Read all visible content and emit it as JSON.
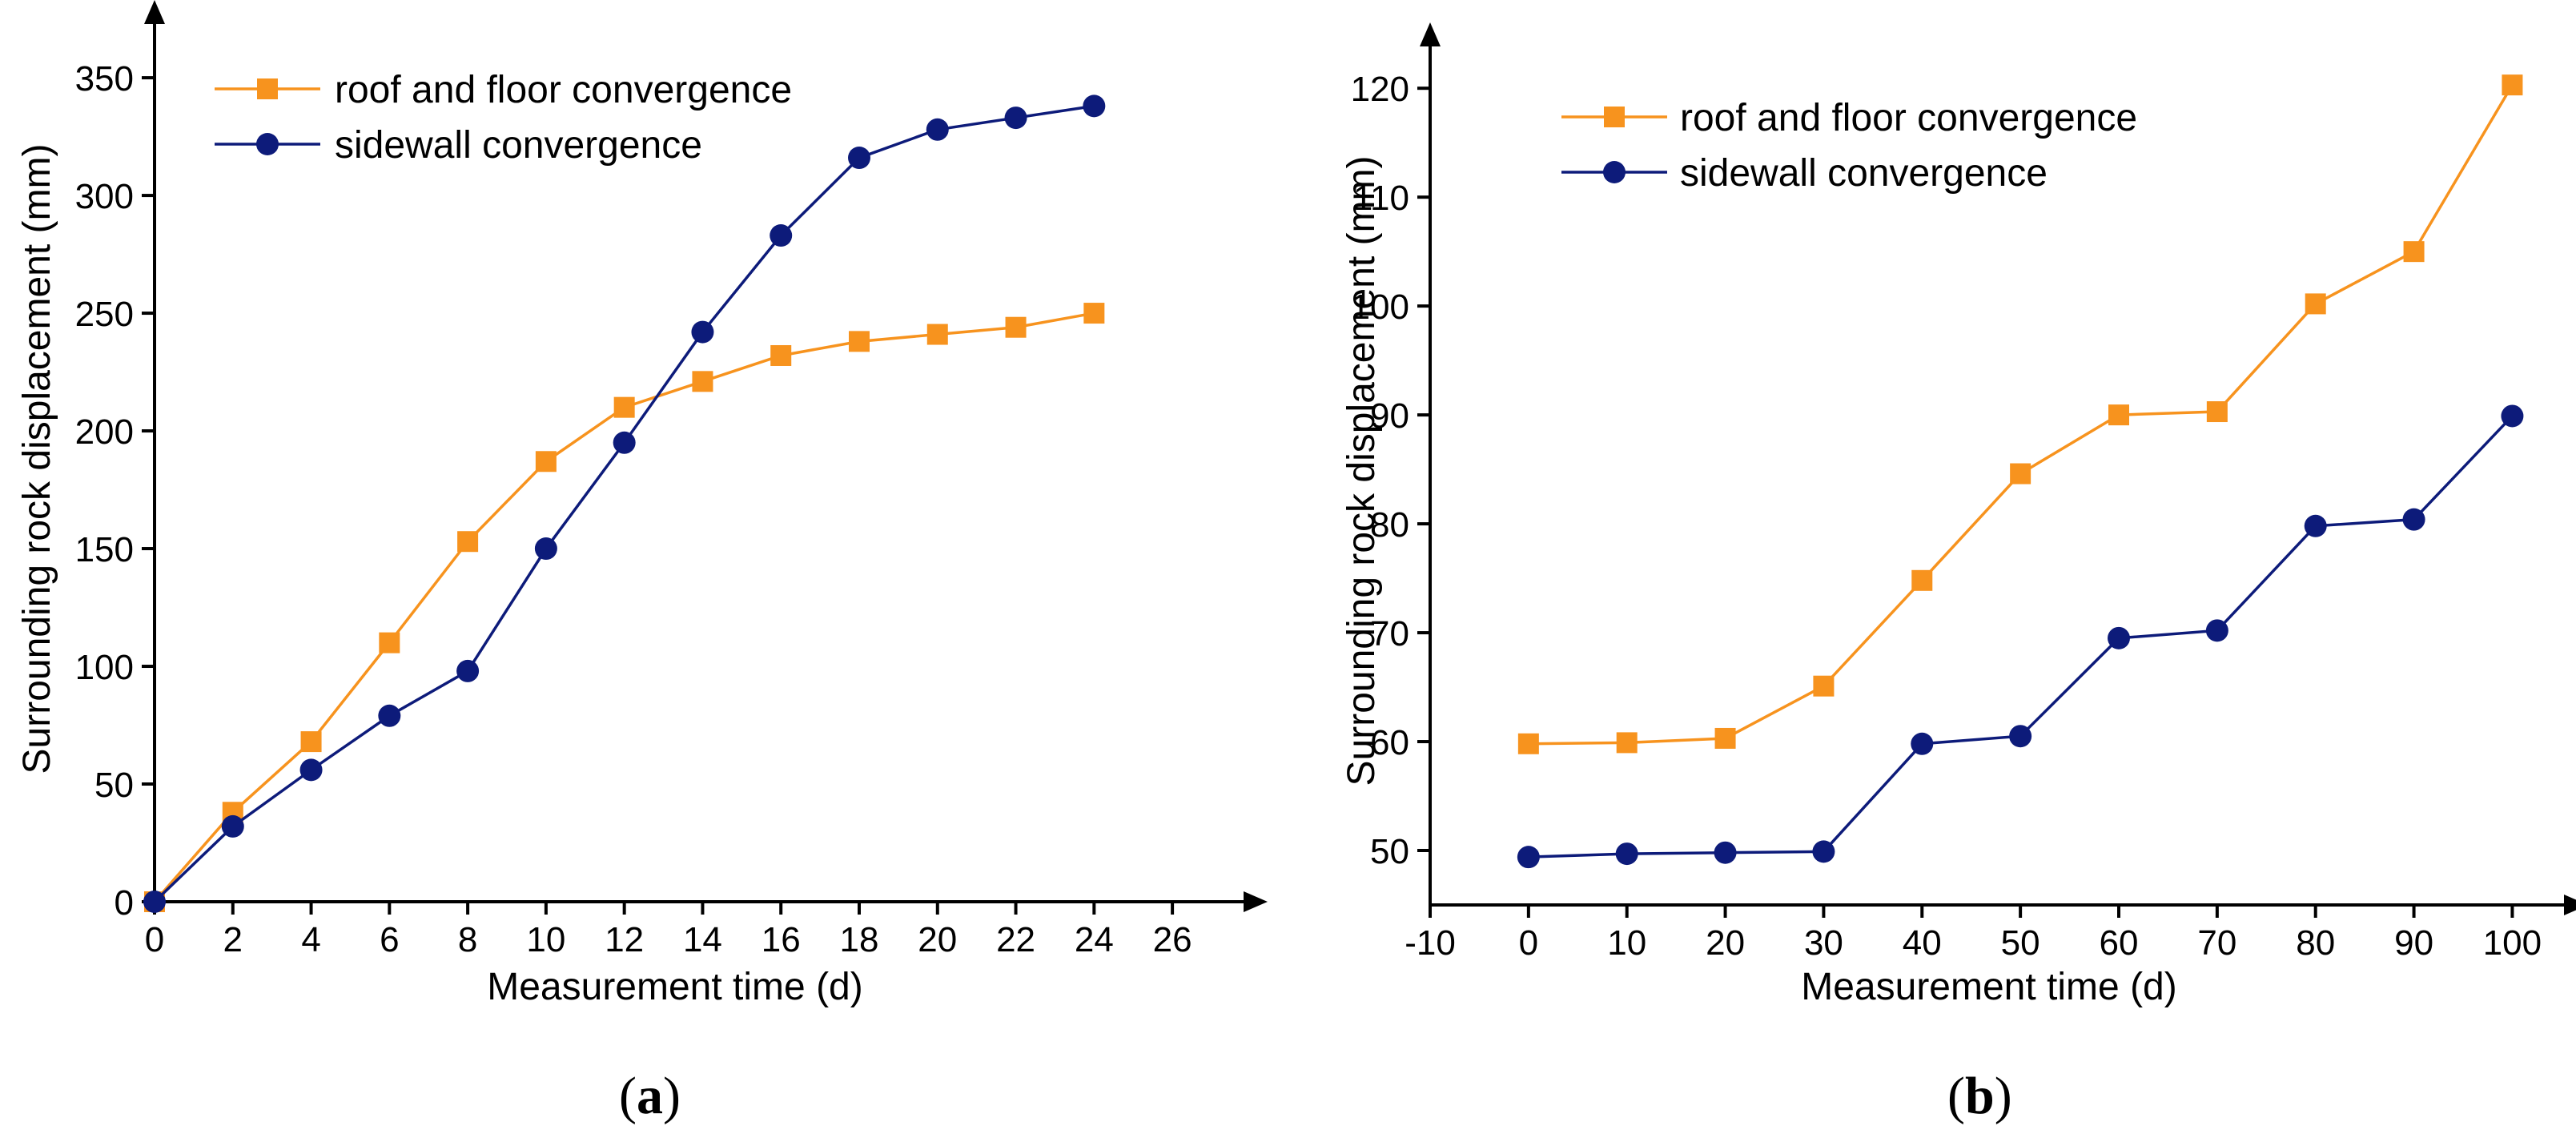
{
  "chart_data": [
    {
      "type": "line",
      "panel_label": "a",
      "xlabel": "Measurement time (d)",
      "ylabel": "Surrounding rock displacement (mm)",
      "xlim": [
        0,
        27
      ],
      "ylim": [
        0,
        365
      ],
      "xticks": [
        0,
        2,
        4,
        6,
        8,
        10,
        12,
        14,
        16,
        18,
        20,
        22,
        24,
        26
      ],
      "yticks": [
        0,
        50,
        100,
        150,
        200,
        250,
        300,
        350
      ],
      "legend_position": "top-left",
      "series": [
        {
          "name": "roof and floor convergence",
          "color": "#F7931E",
          "marker": "square",
          "x": [
            0,
            2,
            4,
            6,
            8,
            10,
            12,
            14,
            16,
            18,
            20,
            22,
            24
          ],
          "values": [
            0,
            38,
            68,
            110,
            153,
            187,
            210,
            221,
            232,
            238,
            241,
            244,
            250
          ]
        },
        {
          "name": "sidewall convergence",
          "color": "#0D1B7A",
          "marker": "circle",
          "x": [
            0,
            2,
            4,
            6,
            8,
            10,
            12,
            14,
            16,
            18,
            20,
            22,
            24
          ],
          "values": [
            0,
            32,
            56,
            79,
            98,
            150,
            195,
            242,
            283,
            316,
            328,
            333,
            338
          ]
        }
      ]
    },
    {
      "type": "line",
      "panel_label": "b",
      "xlabel": "Measurement time (d)",
      "ylabel": "Surrounding rock displacement (mm)",
      "xlim": [
        -10,
        102
      ],
      "ylim": [
        45,
        122
      ],
      "xticks": [
        -10,
        0,
        10,
        20,
        30,
        40,
        50,
        60,
        70,
        80,
        90,
        100
      ],
      "yticks": [
        50,
        60,
        70,
        80,
        90,
        100,
        110,
        120
      ],
      "legend_position": "top-left",
      "series": [
        {
          "name": "roof and floor convergence",
          "color": "#F7931E",
          "marker": "square",
          "x": [
            0,
            10,
            20,
            30,
            40,
            50,
            60,
            70,
            80,
            90,
            100
          ],
          "values": [
            59.8,
            59.9,
            60.3,
            65.1,
            74.8,
            84.6,
            90.0,
            90.3,
            100.2,
            105.0,
            120.3
          ]
        },
        {
          "name": "sidewall convergence",
          "color": "#0D1B7A",
          "marker": "circle",
          "x": [
            0,
            10,
            20,
            30,
            40,
            50,
            60,
            70,
            80,
            90,
            100
          ],
          "values": [
            49.4,
            49.7,
            49.8,
            49.9,
            59.8,
            60.5,
            69.5,
            70.2,
            79.8,
            80.4,
            89.9
          ]
        }
      ]
    }
  ]
}
